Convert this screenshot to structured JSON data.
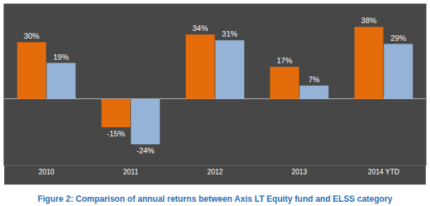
{
  "chart_data": {
    "type": "bar",
    "title": "Figure 2: Comparison of annual returns between Axis LT Equity fund and ELSS category",
    "categories": [
      "2010",
      "2011",
      "2012",
      "2013",
      "2014 YTD"
    ],
    "series": [
      {
        "color": "#e46c0a",
        "values": [
          30,
          -15,
          34,
          17,
          38
        ],
        "value_labels": [
          "30%",
          "-15%",
          "34%",
          "17%",
          "38%"
        ]
      },
      {
        "color": "#95b3d7",
        "values": [
          19,
          -24,
          31,
          7,
          29
        ],
        "value_labels": [
          "19%",
          "-24%",
          "31%",
          "7%",
          "29%"
        ]
      }
    ],
    "ylim": [
      -35,
      50
    ],
    "grid": false,
    "data_labels": true,
    "tick_labels": "x"
  }
}
